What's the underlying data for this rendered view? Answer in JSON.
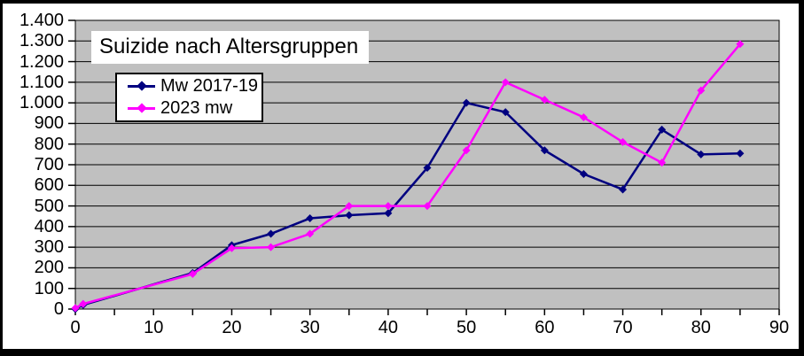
{
  "chart_data": {
    "type": "line",
    "title": "Suizide nach Altersgruppen",
    "x": [
      0,
      1,
      15,
      20,
      25,
      30,
      35,
      40,
      45,
      50,
      55,
      60,
      65,
      70,
      75,
      80,
      85
    ],
    "series": [
      {
        "name": "Mw 2017-19",
        "color": "#000080",
        "values": [
          0,
          20,
          175,
          310,
          365,
          440,
          455,
          465,
          685,
          1000,
          955,
          770,
          655,
          580,
          870,
          750,
          755
        ]
      },
      {
        "name": "2023 mw",
        "color": "#FF00FF",
        "values": [
          5,
          25,
          170,
          295,
          300,
          365,
          500,
          500,
          500,
          770,
          1100,
          1015,
          930,
          810,
          710,
          1060,
          1285
        ]
      }
    ],
    "xlim": [
      0,
      90
    ],
    "ylim": [
      0,
      1400
    ],
    "x_tick_labels": [
      "0",
      "10",
      "20",
      "30",
      "40",
      "50",
      "60",
      "70",
      "80",
      "90"
    ],
    "x_tick_major_step": 10,
    "x_tick_minor_step": 5,
    "y_tick_labels": [
      "0",
      "100",
      "200",
      "300",
      "400",
      "500",
      "600",
      "700",
      "800",
      "900",
      "1.000",
      "1.100",
      "1.200",
      "1.300",
      "1.400"
    ],
    "y_tick_step": 100,
    "grid": "horizontal",
    "legend_position": "inside-upper-left",
    "plot_bg_color": "#C0C0C0",
    "frame_color": "#000000"
  }
}
